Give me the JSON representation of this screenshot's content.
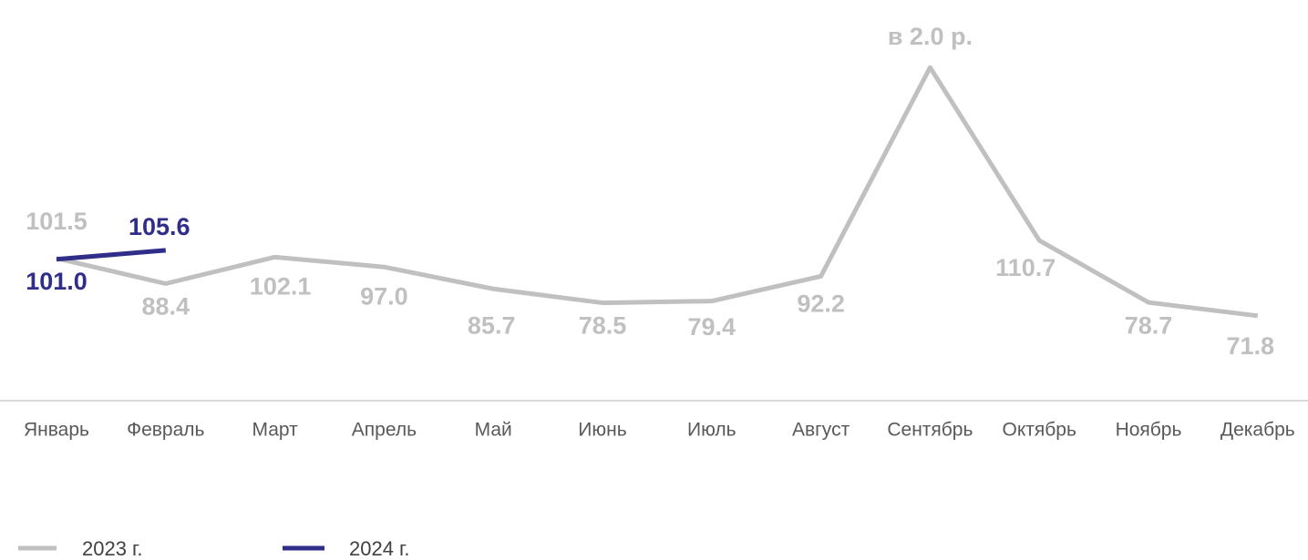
{
  "chart_data": {
    "type": "line",
    "categories": [
      "Январь",
      "Февраль",
      "Март",
      "Апрель",
      "Май",
      "Июнь",
      "Июль",
      "Август",
      "Сентябрь",
      "Октябрь",
      "Ноябрь",
      "Декабрь"
    ],
    "series": [
      {
        "name": "2023 г.",
        "color": "#c0c0c0",
        "values": [
          101.5,
          88.4,
          102.1,
          97.0,
          85.7,
          78.5,
          79.4,
          92.2,
          200,
          110.7,
          78.7,
          71.8
        ],
        "value_labels": [
          "101.5",
          "88.4",
          "102.1",
          "97.0",
          "85.7",
          "78.5",
          "79.4",
          "92.2",
          "в 2.0 р.",
          "110.7",
          "78.7",
          "71.8"
        ]
      },
      {
        "name": "2024 г.",
        "color": "#312e8a",
        "values": [
          101.0,
          105.6,
          null,
          null,
          null,
          null,
          null,
          null,
          null,
          null,
          null,
          null
        ],
        "value_labels": [
          "101.0",
          "105.6",
          null,
          null,
          null,
          null,
          null,
          null,
          null,
          null,
          null,
          null
        ]
      }
    ],
    "ylim": [
      28,
      232
    ]
  }
}
